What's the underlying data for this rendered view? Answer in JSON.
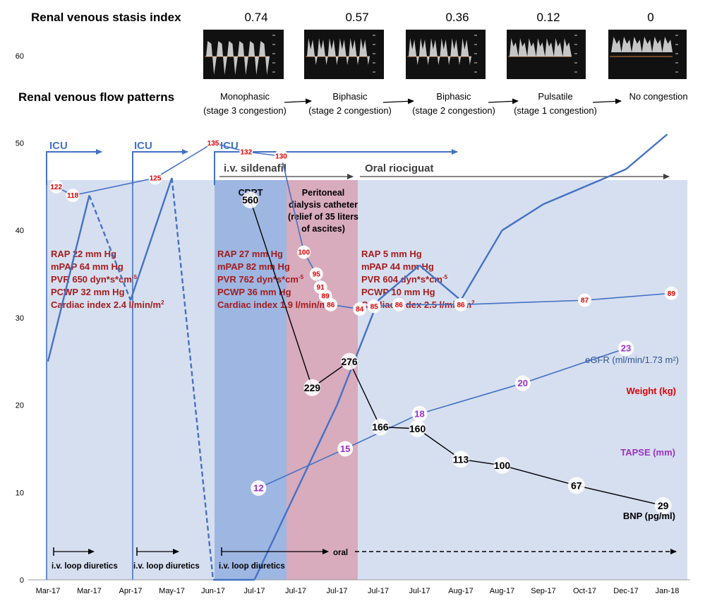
{
  "header": {
    "rvsi_title": "Renal venous stasis index",
    "flow_title": "Renal venous flow patterns"
  },
  "doppler": [
    {
      "rvsi": "0.74",
      "pattern": "Monophasic",
      "stage": "(stage 3 congestion)"
    },
    {
      "rvsi": "0.57",
      "pattern": "Biphasic",
      "stage": "(stage 2 congestion)"
    },
    {
      "rvsi": "0.36",
      "pattern": "Biphasic",
      "stage": "(stage 2 congestion)"
    },
    {
      "rvsi": "0.12",
      "pattern": "Pulsatile",
      "stage": "(stage 1 congestion)"
    },
    {
      "rvsi": "0",
      "pattern": "No congestion",
      "stage": ""
    }
  ],
  "timeline": {
    "icu": [
      "ICU",
      "ICU",
      "ICU"
    ],
    "sildenafil": "i.v. sildenafil",
    "riociguat": "Oral riociguat",
    "crrt": "CRRT",
    "peritoneal": [
      "Peritoneal",
      "dialysis catheter",
      "(relief of 35 liters",
      "of ascites)"
    ],
    "diuretics": [
      "i.v. loop diuretics",
      "i.v. loop diuretics",
      "i.v. loop diuretics"
    ],
    "oral": "oral"
  },
  "hemodynamics": [
    [
      "RAP 22 mm Hg",
      "mPAP 64 mm Hg",
      "PVR 650 dyn*s*cm",
      "PCWP 32 mm Hg",
      "Cardiac index 2.4 l/min/m"
    ],
    [
      "RAP 27 mm Hg",
      "mPAP 82 mm Hg",
      "PVR 762 dyn*s*cm",
      "PCWP 36 mm Hg",
      "Cardiac index 1.9 l/min/m"
    ],
    [
      "RAP 5 mm Hg",
      "mPAP 44 mm Hg",
      "PVR 604 dyn*s*cm",
      "PCWP 10 mm Hg",
      "Cardiac index 2.5 l/min/m"
    ]
  ],
  "superscripts": {
    "pvr": "-5",
    "ci": "2"
  },
  "chart_data": {
    "type": "line",
    "x": [
      "Mar-17",
      "Mar-17",
      "Apr-17",
      "May-17",
      "Jun-17",
      "Jul-17",
      "Jul-17",
      "Jul-17",
      "Jul-17",
      "Jul-17",
      "Aug-17",
      "Aug-17",
      "Sep-17",
      "Oct-17",
      "Dec-17",
      "Jan-18"
    ],
    "ylim": [
      0,
      60
    ],
    "yticks": [
      0,
      10,
      20,
      30,
      40,
      50,
      60
    ],
    "grid": false,
    "series": [
      {
        "name": "eGFR (ml/min/1.73 m²)",
        "color": "#4472c4",
        "points": [
          [
            0,
            25
          ],
          [
            1,
            44
          ],
          [
            2,
            32
          ],
          [
            3,
            46
          ],
          [
            4,
            0
          ],
          [
            5,
            0
          ],
          [
            7,
            20
          ],
          [
            8,
            32
          ],
          [
            9,
            36
          ],
          [
            10,
            32
          ],
          [
            11,
            40
          ],
          [
            12,
            43
          ],
          [
            13,
            45
          ],
          [
            14,
            47
          ],
          [
            15,
            51
          ]
        ],
        "dashed_segments": [
          [
            1,
            44,
            2,
            32
          ],
          [
            3,
            46,
            4,
            0
          ]
        ]
      },
      {
        "name": "Weight (kg)",
        "color": "#4472c4",
        "marker_color": "#e00000",
        "points": [
          [
            0.2,
            45
          ],
          [
            0.6,
            44
          ],
          [
            2.6,
            46
          ],
          [
            4.0,
            50
          ],
          [
            4.8,
            49
          ],
          [
            5.65,
            48.5
          ],
          [
            6.2,
            37.5
          ],
          [
            6.5,
            35
          ],
          [
            6.6,
            33.5
          ],
          [
            6.72,
            32.5
          ],
          [
            6.85,
            31.5
          ],
          [
            7.55,
            31
          ],
          [
            7.9,
            31.3
          ],
          [
            8.5,
            31.5
          ],
          [
            10.0,
            31.5
          ],
          [
            13.0,
            32
          ],
          [
            15.1,
            32.8
          ]
        ],
        "labels": [
          "122",
          "118",
          "125",
          "135",
          "132",
          "130",
          "100",
          "95",
          "91",
          "89",
          "86",
          "84",
          "85",
          "86",
          "86",
          "87",
          "89"
        ]
      },
      {
        "name": "TAPSE (mm)",
        "color": "#4472c4",
        "marker_color": "#9b30c8",
        "points": [
          [
            5.1,
            10.5
          ],
          [
            7.2,
            15
          ],
          [
            9.0,
            19
          ],
          [
            11.5,
            22.5
          ],
          [
            14.0,
            26.5
          ]
        ],
        "labels": [
          "12",
          "15",
          "18",
          "20",
          "23"
        ]
      },
      {
        "name": "BNP (pg/ml)",
        "color": "#000000",
        "points": [
          [
            4.9,
            43.5
          ],
          [
            6.4,
            22
          ],
          [
            7.3,
            25
          ],
          [
            8.05,
            17.5
          ],
          [
            8.95,
            17.3
          ],
          [
            10.0,
            13.8
          ],
          [
            11.0,
            13.1
          ],
          [
            12.8,
            10.8
          ],
          [
            14.9,
            8.5
          ]
        ],
        "labels": [
          "560",
          "229",
          "276",
          "166",
          "160",
          "113",
          "100",
          "67",
          "29"
        ]
      }
    ]
  }
}
